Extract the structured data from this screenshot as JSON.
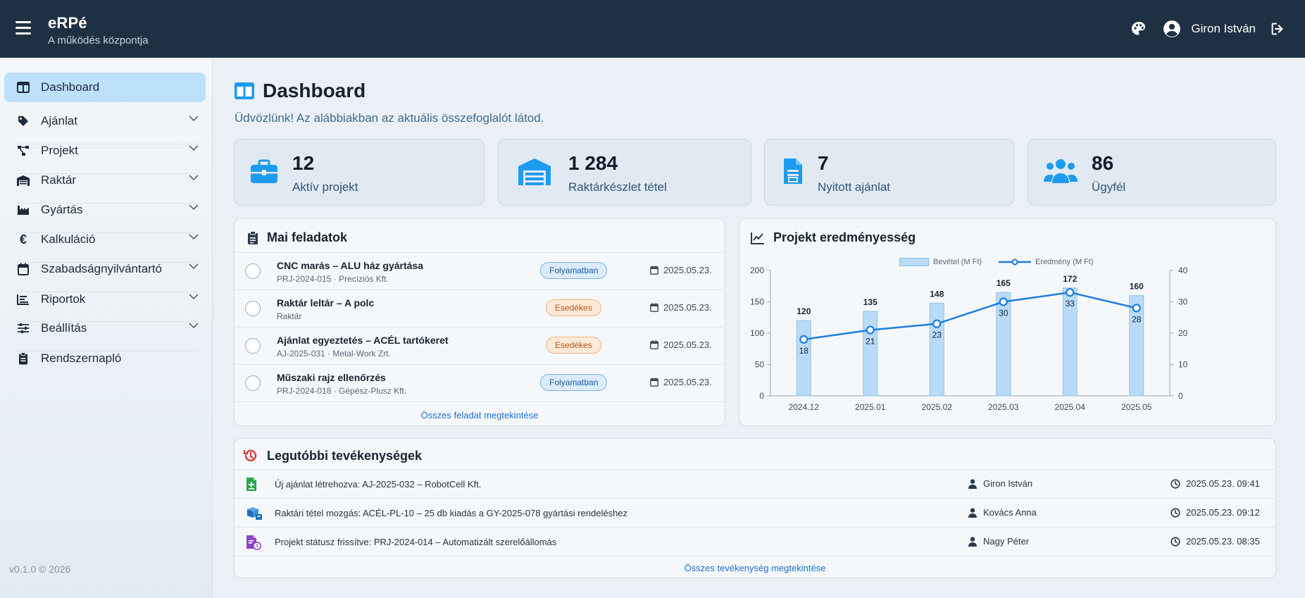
{
  "header": {
    "app_name": "eRPé",
    "tagline": "A működés központja",
    "user_name": "Giron István"
  },
  "sidebar": {
    "items": [
      {
        "label": "Dashboard",
        "icon": "columns-icon",
        "active": true
      },
      {
        "label": "Ajánlat",
        "icon": "tag-icon"
      },
      {
        "label": "Projekt",
        "icon": "diagram-icon"
      },
      {
        "label": "Raktár",
        "icon": "warehouse-icon"
      },
      {
        "label": "Gyártás",
        "icon": "industry-icon"
      },
      {
        "label": "Kalkuláció",
        "icon": "euro-icon"
      },
      {
        "label": "Szabadságnyilvántartó",
        "icon": "calendar-icon"
      },
      {
        "label": "Riportok",
        "icon": "chart-bars-icon"
      },
      {
        "label": "Beállítás",
        "icon": "sliders-icon"
      },
      {
        "label": "Rendszernapló",
        "icon": "clipboard-icon"
      }
    ],
    "version": "v0.1.0 © 2026"
  },
  "page": {
    "title": "Dashboard",
    "subtitle": "Üdvözlünk! Az alábbiakban az aktuális összefoglalót látod."
  },
  "stats": [
    {
      "value": "12",
      "label": "Aktív projekt",
      "icon": "briefcase-icon"
    },
    {
      "value": "1 284",
      "label": "Raktárkészlet tétel",
      "icon": "warehouse-icon"
    },
    {
      "value": "7",
      "label": "Nyitott ajánlat",
      "icon": "document-icon"
    },
    {
      "value": "86",
      "label": "Ügyfél",
      "icon": "users-icon"
    }
  ],
  "tasks": {
    "title": "Mai feladatok",
    "items": [
      {
        "title": "CNC marás – ALU ház gyártása",
        "meta": "PRJ-2024-015  ·  Precíziós Kft.",
        "status": "Folyamatban",
        "date": "2025.05.23."
      },
      {
        "title": "Raktár leltár – A polc",
        "meta": "Raktár",
        "status": "Esedékes",
        "date": "2025.05.23."
      },
      {
        "title": "Ajánlat egyeztetés – ACÉL tartókeret",
        "meta": "AJ-2025-031  ·  Metal-Work Zrt.",
        "status": "Esedékes",
        "date": "2025.05.23."
      },
      {
        "title": "Műszaki rajz ellenőrzés",
        "meta": "PRJ-2024-018  ·  Gépész-Plusz Kft.",
        "status": "Folyamatban",
        "date": "2025.05.23."
      }
    ],
    "view_all": "Összes feladat megtekintése"
  },
  "chart_panel": {
    "title": "Projekt eredményesség"
  },
  "chart_data": {
    "type": "bar",
    "categories": [
      "2024.12",
      "2025.01",
      "2025.02",
      "2025.03",
      "2025.04",
      "2025.05"
    ],
    "series": [
      {
        "name": "Bevétel (M Ft)",
        "type": "bar",
        "axis": "left",
        "values": [
          120,
          135,
          148,
          165,
          172,
          160
        ],
        "color": "#b9dbf7"
      },
      {
        "name": "Eredmény (M Ft)",
        "type": "line",
        "axis": "right",
        "values": [
          18,
          21,
          23,
          30,
          33,
          28
        ],
        "color": "#1d7ce0"
      }
    ],
    "ylim": [
      0,
      200
    ],
    "y_ticks": [
      0,
      50,
      100,
      150,
      200
    ],
    "y2lim": [
      0,
      40
    ],
    "y2_ticks": [
      0,
      10,
      20,
      30,
      40
    ],
    "legend": "top-center",
    "grid": false
  },
  "activities": {
    "title": "Legutóbbi tevékenységek",
    "items": [
      {
        "text": "Új ajánlat létrehozva: AJ-2025-032 – RobotCell Kft.",
        "user": "Giron István",
        "time": "2025.05.23. 09:41",
        "icon": "file-add-icon"
      },
      {
        "text": "Raktári tétel mozgás: ACÉL-PL-10 – 25 db kiadás a GY-2025-078 gyártási rendeléshez",
        "user": "Kovács Anna",
        "time": "2025.05.23. 09:12",
        "icon": "boxes-icon"
      },
      {
        "text": "Projekt státusz frissítve: PRJ-2024-014 – Automatizált szerelőállomás",
        "user": "Nagy Péter",
        "time": "2025.05.23. 08:35",
        "icon": "file-clock-icon"
      }
    ],
    "view_all": "Összes tevékenység megtekintése"
  },
  "colors": {
    "topbar": "#1e3142",
    "accent": "#1d9bf0",
    "active_nav": "#bde0fb"
  }
}
